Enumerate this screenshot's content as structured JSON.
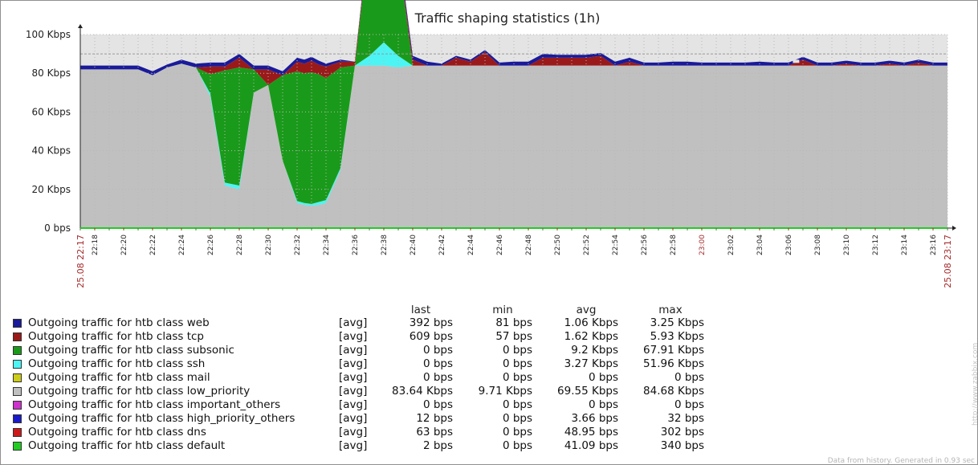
{
  "chart_data": {
    "type": "area",
    "title": "Traffic shaping statistics (1h)",
    "y_unit": "Kbps",
    "ylim": [
      0,
      100
    ],
    "y_ticks": [
      "0 bps",
      "20 Kbps",
      "40 Kbps",
      "60 Kbps",
      "80 Kbps",
      "100 Kbps"
    ],
    "trigger_line_kbps": 90,
    "x_range": [
      "22:17",
      "23:17"
    ],
    "x_tick_labels": [
      "22:18",
      "22:20",
      "22:22",
      "22:24",
      "22:26",
      "22:28",
      "22:30",
      "22:32",
      "22:34",
      "22:36",
      "22:38",
      "22:40",
      "22:42",
      "22:44",
      "22:46",
      "22:48",
      "22:50",
      "22:52",
      "22:54",
      "22:56",
      "22:58",
      "23:00",
      "23:02",
      "23:04",
      "23:06",
      "23:08",
      "23:10",
      "23:12",
      "23:14",
      "23:16"
    ],
    "x_highlight": "23:00",
    "x_edge_labels": [
      "25.08 22:17",
      "25.08 23:17"
    ],
    "stack_x_minutes": [
      0,
      2,
      4,
      5,
      6,
      7,
      8,
      9,
      10,
      11,
      12,
      13,
      14,
      15,
      15.5,
      16,
      16.5,
      17,
      18,
      19,
      20,
      21,
      22,
      23,
      24,
      25,
      26,
      27,
      28,
      29,
      30,
      31,
      32,
      33,
      34,
      35,
      36,
      37,
      38,
      39,
      40,
      41,
      42,
      43,
      44,
      45,
      46,
      47,
      48,
      49,
      50,
      51,
      52,
      53,
      54,
      55,
      56,
      57,
      58,
      59,
      60
    ],
    "series": [
      {
        "name": "low_priority",
        "color": "#c0c0c0",
        "values": [
          82,
          82,
          82,
          79,
          83,
          85,
          83,
          68,
          22,
          20,
          70,
          74,
          35,
          13,
          12,
          11.5,
          12,
          13,
          30,
          84,
          84,
          84,
          83,
          84,
          84,
          84,
          84,
          84,
          84,
          84,
          84,
          84,
          84,
          84,
          84,
          84,
          84,
          84,
          84,
          84,
          84,
          84,
          84,
          84,
          84,
          84,
          84,
          84,
          84,
          84,
          84,
          84,
          84,
          84,
          84,
          84,
          84,
          84,
          84,
          84,
          84
        ]
      },
      {
        "name": "ssh",
        "color": "#4df4f4",
        "values": [
          0,
          0,
          0,
          0,
          0,
          0,
          0,
          1.5,
          1.5,
          2,
          0,
          0,
          0,
          1,
          1,
          1,
          1.5,
          1.5,
          1,
          0,
          5,
          12,
          6,
          0,
          0,
          0,
          0,
          0,
          0,
          0,
          0,
          0,
          0,
          0,
          0,
          0,
          0,
          0,
          0,
          0,
          0,
          0,
          0,
          0,
          0,
          0,
          0,
          0,
          0,
          0,
          0,
          0,
          0,
          0,
          0,
          0,
          0,
          0,
          0,
          0,
          0
        ]
      },
      {
        "name": "subsonic",
        "color": "#1a9a1a",
        "values": [
          0,
          0,
          0,
          0,
          0,
          0,
          0,
          10,
          58,
          61,
          12,
          0,
          44,
          67,
          67,
          68,
          66,
          63,
          52,
          0,
          62,
          45,
          53,
          0,
          0,
          0,
          0,
          0,
          0,
          0,
          0,
          0,
          0,
          0,
          0,
          0,
          0,
          0,
          0,
          0,
          0,
          0,
          0,
          0,
          0,
          0,
          0,
          0,
          0,
          0,
          0,
          0,
          0,
          0,
          0,
          0,
          0,
          0,
          0,
          0,
          0
        ]
      },
      {
        "name": "tcp",
        "color": "#9a1a1a",
        "values": [
          0,
          0,
          0,
          0,
          0,
          0,
          0,
          4,
          2,
          5,
          0,
          8,
          0,
          5,
          5,
          6,
          5,
          6,
          3,
          2,
          2,
          2,
          2,
          3,
          0,
          0,
          4,
          2,
          7,
          0,
          0,
          0,
          4,
          4,
          4,
          4,
          5,
          0,
          2,
          0,
          0,
          0,
          0,
          0,
          0,
          0,
          0,
          0,
          0,
          0,
          3,
          0,
          0,
          1,
          0,
          0,
          1,
          0,
          1.5,
          0,
          0
        ]
      },
      {
        "name": "web",
        "color": "#1a1a9a",
        "values": [
          2,
          2,
          2,
          2,
          1.5,
          2,
          2,
          2,
          2,
          2,
          2,
          2,
          2,
          2,
          2,
          2,
          2,
          1.5,
          1,
          0,
          2,
          2,
          2,
          2,
          2,
          1,
          1,
          1,
          1,
          1.5,
          2,
          2,
          2,
          1.5,
          1.5,
          1.5,
          1.5,
          2,
          2,
          1.5,
          1.5,
          2,
          2,
          1.5,
          1.5,
          1.5,
          1.5,
          2,
          1.5,
          1.5,
          1.5,
          1.5,
          1.5,
          1.5,
          1.5,
          1.5,
          1.5,
          1.5,
          1.5,
          1.5,
          1.5
        ]
      }
    ]
  },
  "legend": {
    "columns": [
      "last",
      "min",
      "avg",
      "max"
    ],
    "rows": [
      {
        "color": "#1a1a9a",
        "name": "Outgoing traffic for htb class web",
        "agg": "[avg]",
        "last": "392 bps",
        "min": "81 bps",
        "avg": "1.06 Kbps",
        "max": "3.25 Kbps"
      },
      {
        "color": "#9a1a1a",
        "name": "Outgoing traffic for htb class tcp",
        "agg": "[avg]",
        "last": "609 bps",
        "min": "57 bps",
        "avg": "1.62 Kbps",
        "max": "5.93 Kbps"
      },
      {
        "color": "#1a9a1a",
        "name": "Outgoing traffic for htb class subsonic",
        "agg": "[avg]",
        "last": "0 bps",
        "min": "0 bps",
        "avg": "9.2 Kbps",
        "max": "67.91 Kbps"
      },
      {
        "color": "#4df4f4",
        "name": "Outgoing traffic for htb class ssh",
        "agg": "[avg]",
        "last": "0 bps",
        "min": "0 bps",
        "avg": "3.27 Kbps",
        "max": "51.96 Kbps"
      },
      {
        "color": "#cccc1a",
        "name": "Outgoing traffic for htb class mail",
        "agg": "[avg]",
        "last": "0 bps",
        "min": "0 bps",
        "avg": "0 bps",
        "max": "0 bps"
      },
      {
        "color": "#c0c0c0",
        "name": "Outgoing traffic for htb class low_priority",
        "agg": "[avg]",
        "last": "83.64 Kbps",
        "min": "9.71 Kbps",
        "avg": "69.55 Kbps",
        "max": "84.68 Kbps"
      },
      {
        "color": "#cc33cc",
        "name": "Outgoing traffic for htb class important_others",
        "agg": "[avg]",
        "last": "0 bps",
        "min": "0 bps",
        "avg": "0 bps",
        "max": "0 bps"
      },
      {
        "color": "#1a1acc",
        "name": "Outgoing traffic for htb class high_priority_others",
        "agg": "[avg]",
        "last": "12 bps",
        "min": "0 bps",
        "avg": "3.66 bps",
        "max": "32 bps"
      },
      {
        "color": "#cc1a1a",
        "name": "Outgoing traffic for htb class dns",
        "agg": "[avg]",
        "last": "63 bps",
        "min": "0 bps",
        "avg": "48.95 bps",
        "max": "302 bps"
      },
      {
        "color": "#22cc22",
        "name": "Outgoing traffic for htb class default",
        "agg": "[avg]",
        "last": "2 bps",
        "min": "0 bps",
        "avg": "41.09 bps",
        "max": "340 bps"
      }
    ]
  },
  "footer": "Data from history. Generated in 0.93 sec",
  "side_url": "http://www.zabbix.com"
}
